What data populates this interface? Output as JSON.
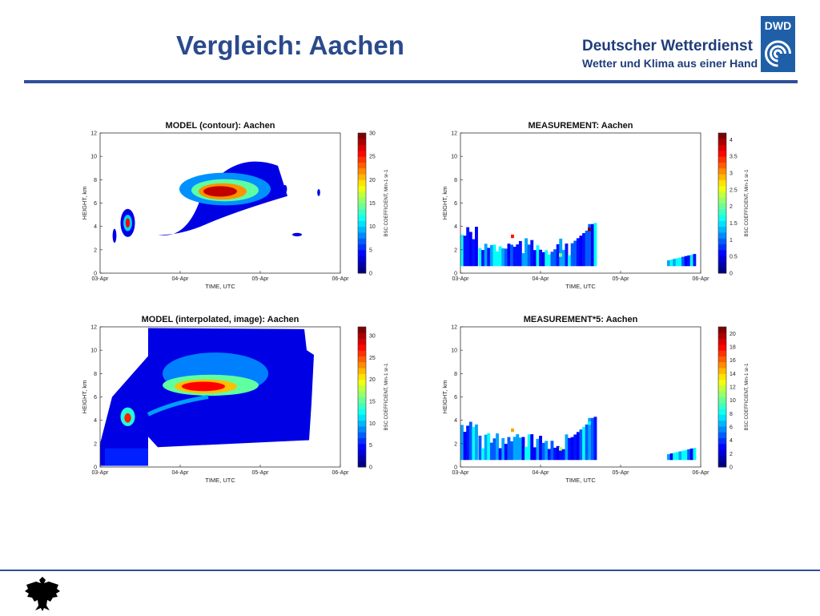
{
  "slide": {
    "title": "Vergleich: Aachen",
    "brand_line1": "Deutscher Wetterdienst",
    "brand_line2": "Wetter und Klima aus einer Hand",
    "logo_text": "DWD",
    "colors": {
      "title": "#2a4a8c",
      "rule": "#2e4f9a",
      "logo": "#1f5fa8"
    }
  },
  "chart_data": [
    {
      "type": "heatmap",
      "title": "MODEL (contour): Aachen",
      "xlabel": "TIME, UTC",
      "ylabel": "HEIGHT, km",
      "xticks": [
        "03-Apr",
        "04-Apr",
        "05-Apr",
        "06-Apr"
      ],
      "yticks": [
        "0",
        "2",
        "4",
        "6",
        "8",
        "10",
        "12"
      ],
      "ylim": [
        0,
        12
      ],
      "colorbar": {
        "label": "BSC COEFFICIENT, Mm-1 sr-1",
        "ticks": [
          "0",
          "5",
          "10",
          "15",
          "20",
          "25",
          "30"
        ],
        "range": [
          0,
          30
        ]
      },
      "features": [
        {
          "x": [
            0.09,
            0.16
          ],
          "y": [
            3.3,
            5.4
          ],
          "value": 30
        },
        {
          "x": [
            0.27,
            0.78
          ],
          "y": [
            5.2,
            9.0
          ],
          "value": 28
        },
        {
          "x": [
            0.75,
            0.79
          ],
          "y": [
            6.8,
            7.8
          ],
          "value": 4
        }
      ]
    },
    {
      "type": "heatmap",
      "title": "MEASUREMENT: Aachen",
      "xlabel": "TIME, UTC",
      "ylabel": "HEIGHT, km",
      "xticks": [
        "03-Apr",
        "04-Apr",
        "05-Apr",
        "06-Apr"
      ],
      "yticks": [
        "0",
        "2",
        "4",
        "6",
        "8",
        "10",
        "12"
      ],
      "ylim": [
        0,
        12
      ],
      "colorbar": {
        "label": "BSC COEFFICIENT, Mm-1 sr-1",
        "ticks": [
          "0",
          "0.5",
          "1",
          "1.5",
          "2",
          "2.5",
          "3",
          "3.5",
          "4"
        ],
        "range": [
          0,
          4.2
        ]
      },
      "features": [
        {
          "x": [
            0.0,
            0.06
          ],
          "y": [
            0.6,
            4.2
          ],
          "value": 0.9
        },
        {
          "x": [
            0.07,
            0.56
          ],
          "y": [
            0.6,
            4.3
          ],
          "value": 1.0
        },
        {
          "x": [
            0.86,
            0.97
          ],
          "y": [
            0.6,
            1.7
          ],
          "value": 0.6
        }
      ]
    },
    {
      "type": "heatmap",
      "title": "MODEL (interpolated, image): Aachen",
      "xlabel": "TIME, UTC",
      "ylabel": "HEIGHT, km",
      "xticks": [
        "03-Apr",
        "04-Apr",
        "05-Apr",
        "06-Apr"
      ],
      "yticks": [
        "0",
        "2",
        "4",
        "6",
        "8",
        "10",
        "12"
      ],
      "ylim": [
        0,
        12
      ],
      "colorbar": {
        "label": "BSC COEFFICIENT, Mm-1 sr-1",
        "ticks": [
          "0",
          "5",
          "10",
          "15",
          "20",
          "25",
          "30"
        ],
        "range": [
          0,
          32
        ]
      },
      "features": [
        {
          "x": [
            0.0,
            0.89
          ],
          "y": [
            0.0,
            11.9
          ],
          "value": 3
        },
        {
          "x": [
            0.26,
            0.66
          ],
          "y": [
            5.8,
            8.0
          ],
          "value": 28
        },
        {
          "x": [
            0.09,
            0.14
          ],
          "y": [
            3.8,
            4.6
          ],
          "value": 28
        }
      ]
    },
    {
      "type": "heatmap",
      "title": "MEASUREMENT*5: Aachen",
      "xlabel": "TIME, UTC",
      "ylabel": "HEIGHT, km",
      "xticks": [
        "03-Apr",
        "04-Apr",
        "05-Apr",
        "06-Apr"
      ],
      "yticks": [
        "0",
        "2",
        "4",
        "6",
        "8",
        "10",
        "12"
      ],
      "ylim": [
        0,
        12
      ],
      "colorbar": {
        "label": "BSC COEFFICIENT, Mm-1 sr-1",
        "ticks": [
          "0",
          "2",
          "4",
          "6",
          "8",
          "10",
          "12",
          "14",
          "16",
          "18",
          "20"
        ],
        "range": [
          0,
          21
        ]
      },
      "features": [
        {
          "x": [
            0.0,
            0.06
          ],
          "y": [
            0.6,
            4.2
          ],
          "value": 4.5
        },
        {
          "x": [
            0.07,
            0.56
          ],
          "y": [
            0.6,
            4.3
          ],
          "value": 5
        },
        {
          "x": [
            0.86,
            0.97
          ],
          "y": [
            0.6,
            1.7
          ],
          "value": 3
        }
      ]
    }
  ]
}
